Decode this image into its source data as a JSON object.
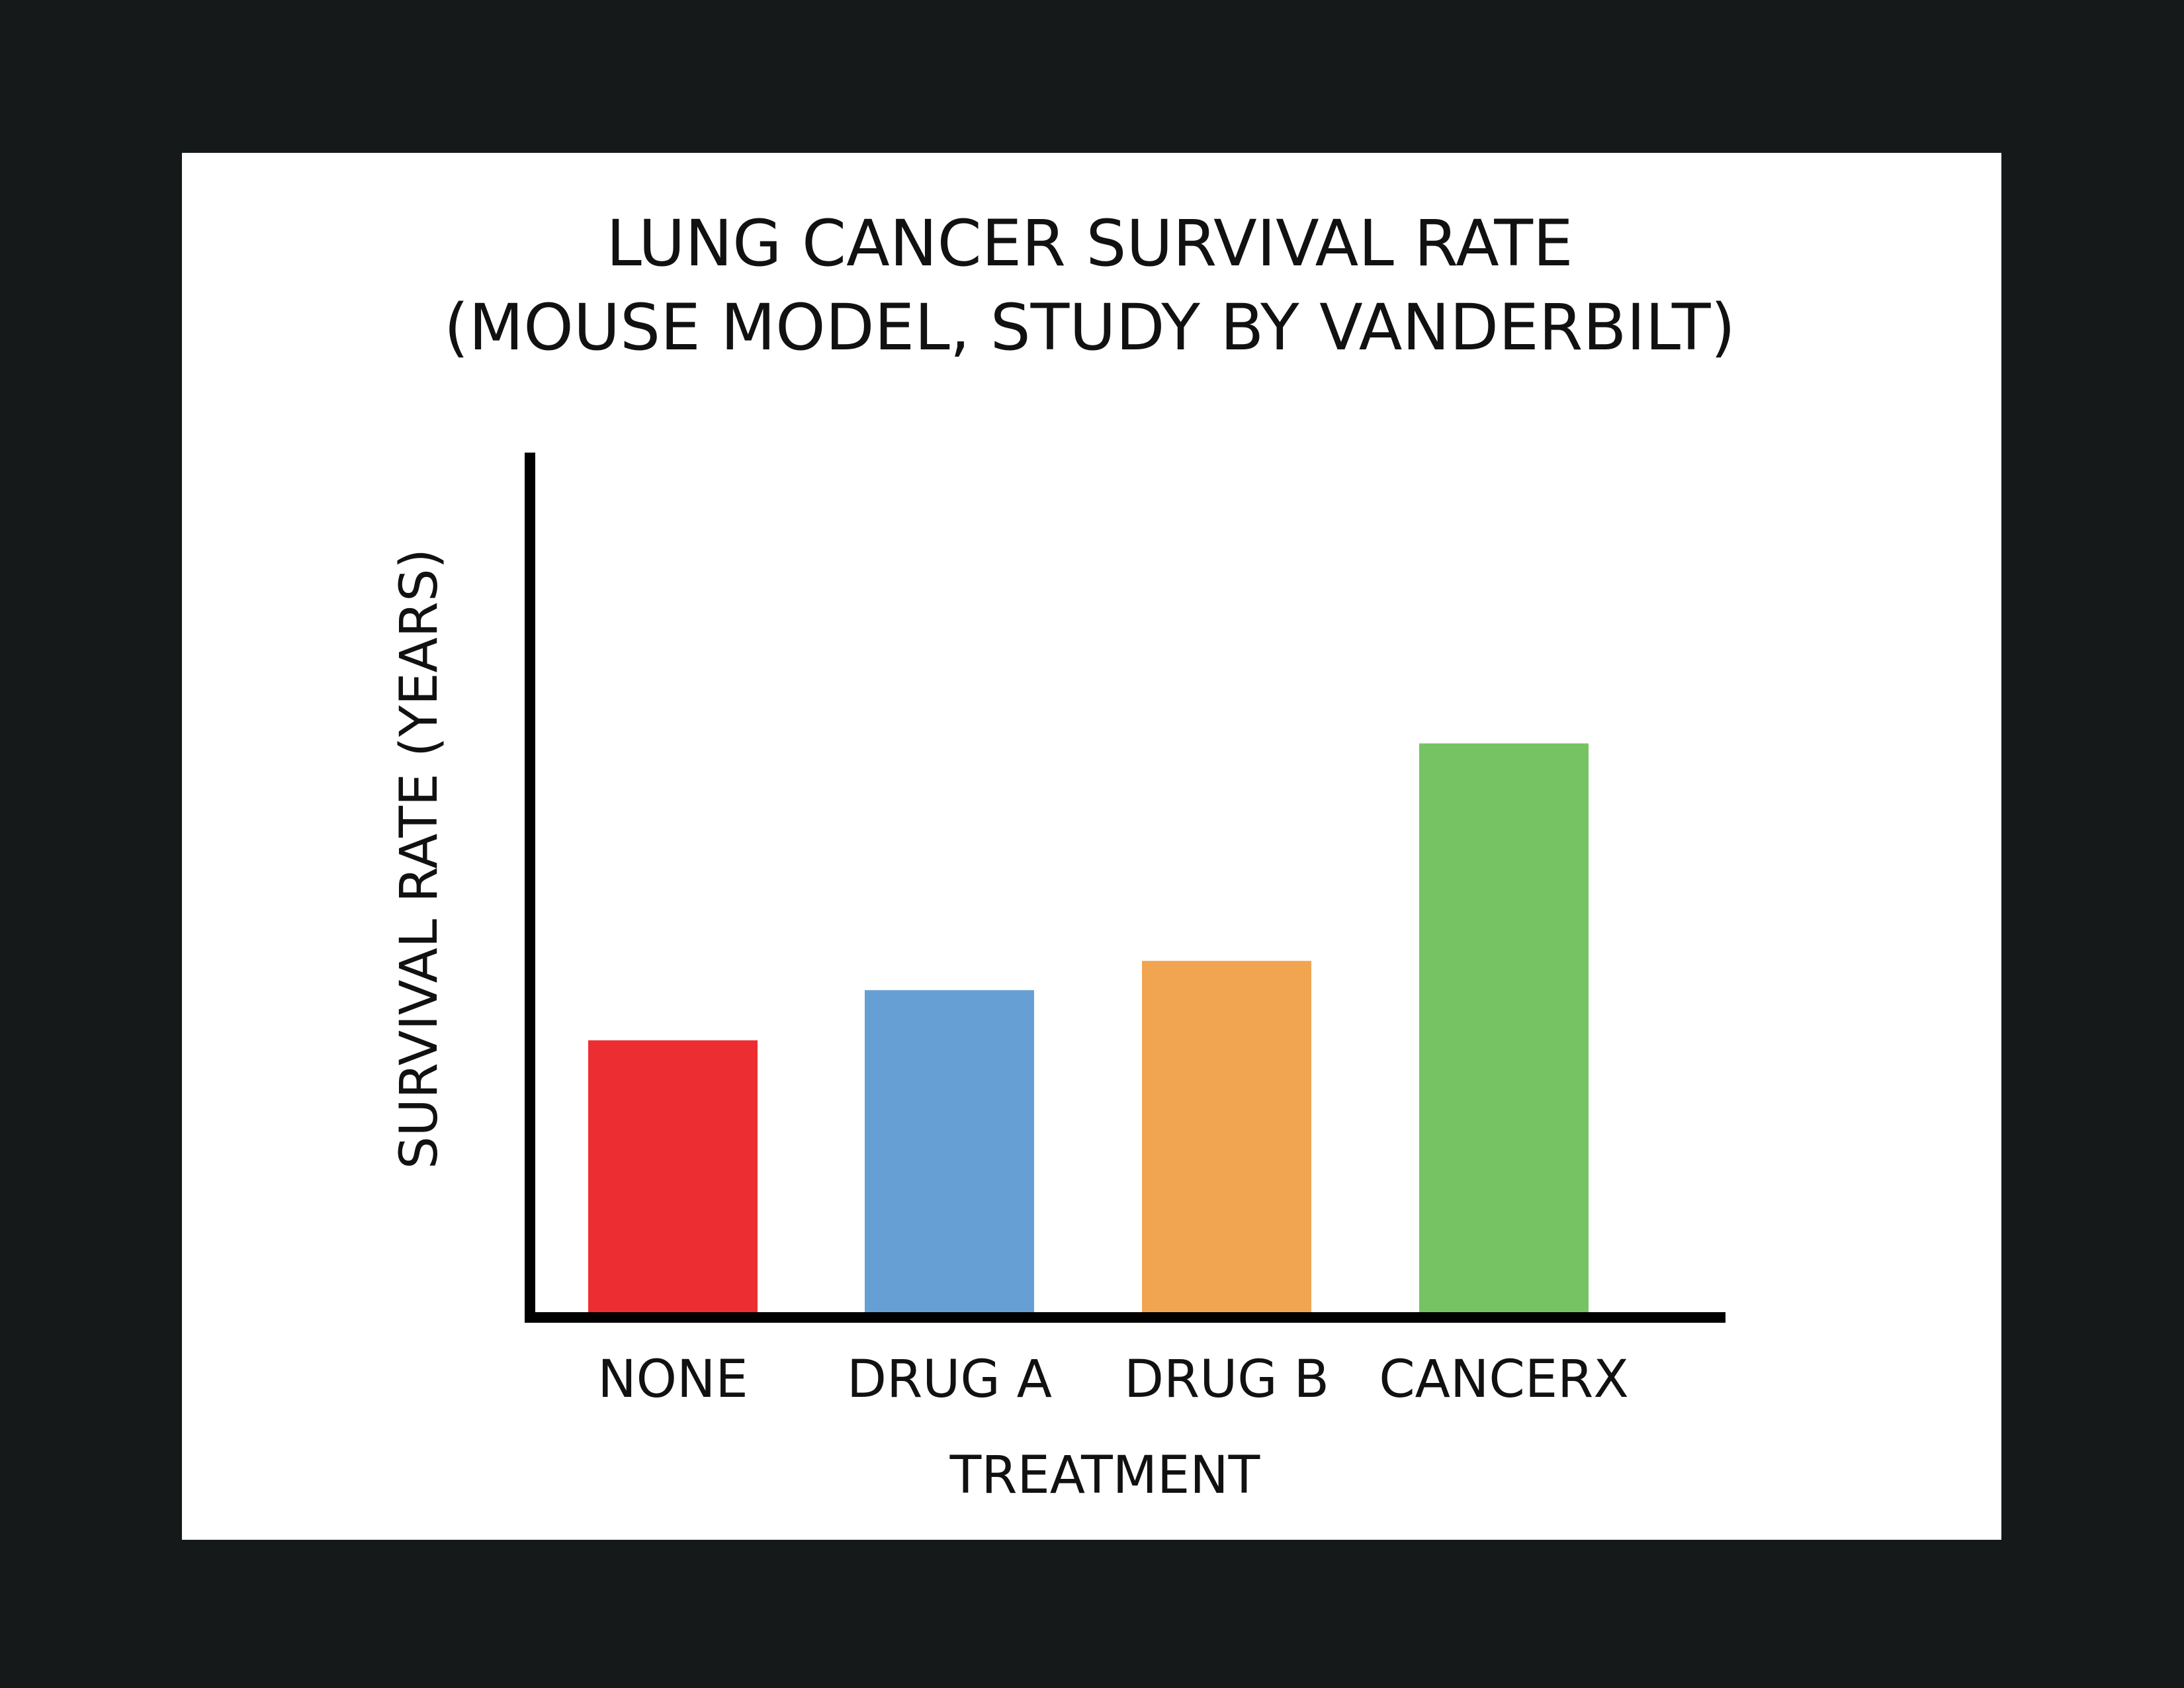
{
  "chart_data": {
    "type": "bar",
    "title": [
      "LUNG CANCER SURVIVAL RATE",
      "(MOUSE MODEL, STUDY BY VANDERBILT)"
    ],
    "xlabel": "TREATMENT",
    "ylabel": "SURVIVAL RATE (YEARS)",
    "categories": [
      "NONE",
      "DRUG A",
      "DRUG B",
      "CANCERX"
    ],
    "values": [
      0.325,
      0.385,
      0.42,
      0.68
    ],
    "ylim": [
      0,
      1
    ],
    "grid": false,
    "legend": "none",
    "colors": [
      "#ec2e33",
      "#659fd4",
      "#f2a551",
      "#76c363"
    ]
  },
  "colors": {
    "background": "#151919",
    "panel": "#ffffff",
    "axis": "#000000",
    "text": "#111111"
  }
}
